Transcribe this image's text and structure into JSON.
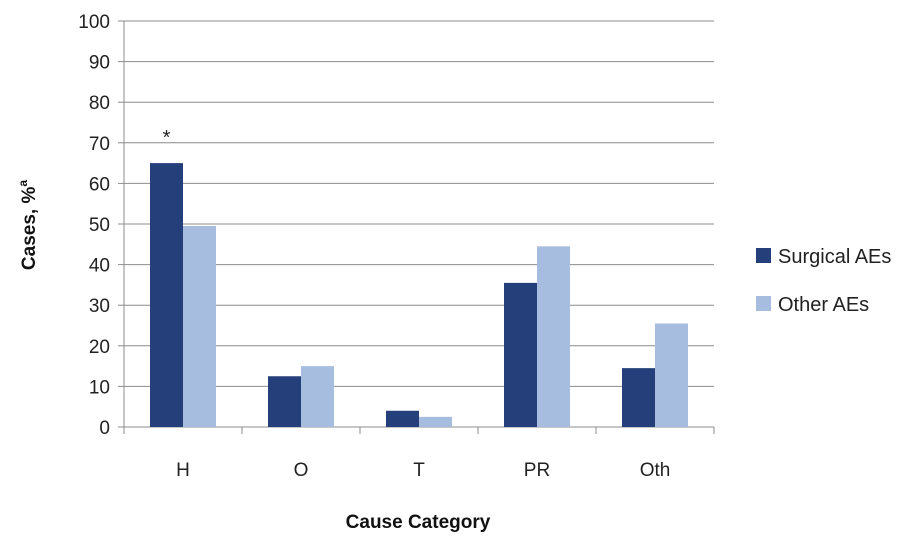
{
  "chart_data": {
    "type": "bar",
    "title": "",
    "xlabel": "Cause Category",
    "ylabel": "Cases, %",
    "ylabel_superscript": "a",
    "categories": [
      "H",
      "O",
      "T",
      "PR",
      "Oth"
    ],
    "series": [
      {
        "name": "Surgical AEs",
        "color": "#243f7a",
        "values": [
          65,
          12.5,
          4,
          35.5,
          14.5
        ]
      },
      {
        "name": "Other AEs",
        "color": "#a7bde0",
        "values": [
          49.5,
          15,
          2.5,
          44.5,
          25.5
        ]
      }
    ],
    "ylim": [
      0,
      100
    ],
    "yticks": [
      0,
      10,
      20,
      30,
      40,
      50,
      60,
      70,
      80,
      90,
      100
    ],
    "grid": true,
    "legend_position": "right",
    "annotations": [
      {
        "text": "*",
        "category": "H",
        "series": "Surgical AEs"
      }
    ]
  }
}
